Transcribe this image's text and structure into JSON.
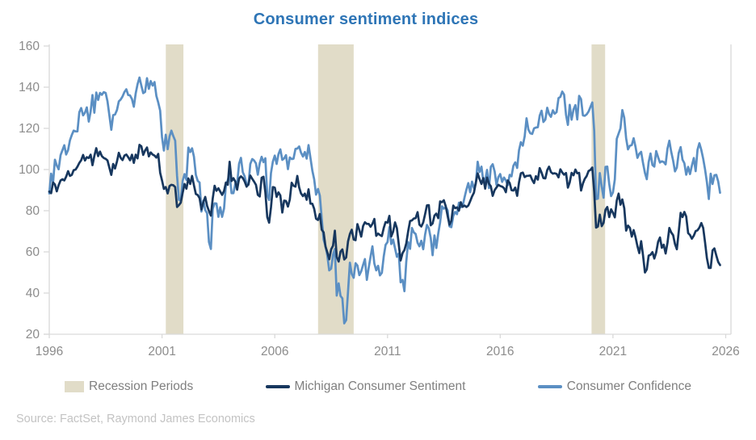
{
  "title": "Consumer sentiment indices",
  "source": "Source: FactSet, Raymond James Economics",
  "legend": {
    "recession_label": "Recession Periods",
    "michigan_label": "Michigan Consumer Sentiment",
    "confidence_label": "Consumer Confidence"
  },
  "colors": {
    "title": "#2E75B6",
    "michigan_line": "#17375E",
    "confidence_line": "#5B8FC3",
    "recession_band": "#E1DCC8",
    "axis_line": "#D9D9D9",
    "tick_text": "#8C8C8C",
    "legend_text": "#7F7F7F",
    "source_text": "#C3C3C3"
  },
  "chart_data": {
    "type": "line",
    "title": "Consumer sentiment indices",
    "x_unit": "monthly",
    "x_start_year": 1996,
    "xlim": [
      1996,
      2026
    ],
    "ylim": [
      20,
      160
    ],
    "x_ticks": [
      1996,
      2001,
      2006,
      2011,
      2016,
      2021,
      2026
    ],
    "y_ticks": [
      20,
      40,
      60,
      80,
      100,
      120,
      140,
      160
    ],
    "grid": false,
    "legend_position": "bottom",
    "recession_periods": [
      {
        "start": 2001.17,
        "end": 2001.95
      },
      {
        "start": 2007.92,
        "end": 2009.5
      },
      {
        "start": 2020.05,
        "end": 2020.65
      }
    ],
    "series": [
      {
        "name": "Michigan Consumer Sentiment",
        "color": "#17375E",
        "values": [
          89.3,
          88.5,
          93.7,
          92.7,
          89.4,
          92.4,
          94.7,
          95.3,
          94.7,
          96.5,
          99.2,
          96.9,
          97.4,
          99.7,
          100.0,
          101.4,
          103.2,
          104.5,
          107.1,
          104.4,
          106.0,
          105.6,
          107.2,
          102.1,
          106.6,
          110.4,
          106.5,
          108.7,
          106.5,
          105.6,
          105.2,
          104.4,
          100.9,
          97.4,
          102.7,
          100.5,
          103.9,
          108.1,
          105.7,
          104.6,
          106.8,
          107.3,
          106.0,
          104.5,
          107.2,
          103.2,
          107.2,
          105.4,
          112.0,
          111.3,
          107.1,
          109.2,
          110.7,
          106.4,
          108.3,
          107.3,
          106.8,
          105.8,
          107.6,
          98.4,
          94.7,
          90.6,
          91.5,
          88.4,
          92.0,
          92.6,
          92.4,
          91.5,
          81.8,
          82.7,
          83.9,
          88.8,
          93.0,
          90.7,
          95.7,
          93.0,
          96.9,
          92.4,
          88.1,
          87.6,
          86.1,
          80.6,
          84.2,
          86.7,
          82.4,
          79.9,
          77.6,
          86.0,
          92.1,
          89.7,
          90.9,
          89.3,
          87.7,
          89.6,
          93.7,
          92.6,
          103.8,
          94.4,
          95.8,
          94.2,
          90.2,
          95.6,
          96.7,
          95.9,
          94.2,
          91.7,
          92.8,
          97.1,
          95.5,
          94.1,
          92.6,
          87.7,
          86.9,
          96.0,
          96.5,
          89.1,
          76.9,
          74.2,
          81.6,
          91.5,
          91.2,
          86.7,
          88.9,
          87.4,
          79.1,
          84.9,
          84.7,
          82.0,
          85.4,
          93.6,
          92.1,
          91.7,
          96.9,
          91.3,
          88.4,
          87.1,
          88.3,
          85.3,
          90.4,
          83.4,
          83.4,
          80.9,
          76.1,
          75.5,
          78.4,
          70.8,
          69.5,
          62.6,
          59.8,
          56.4,
          61.2,
          63.0,
          70.3,
          57.6,
          55.3,
          60.1,
          61.2,
          56.3,
          57.3,
          65.1,
          68.7,
          70.8,
          66.0,
          65.7,
          73.5,
          70.6,
          67.4,
          72.5,
          74.4,
          73.6,
          73.6,
          72.2,
          73.6,
          76.0,
          67.8,
          68.9,
          68.2,
          67.7,
          71.6,
          74.5,
          74.2,
          77.5,
          67.5,
          69.8,
          74.3,
          71.5,
          63.7,
          55.8,
          59.4,
          60.9,
          64.1,
          69.9,
          75.0,
          75.3,
          76.2,
          76.4,
          79.3,
          73.2,
          72.3,
          74.3,
          78.3,
          82.6,
          82.7,
          72.9,
          73.8,
          77.6,
          78.6,
          76.4,
          84.5,
          84.1,
          85.1,
          82.1,
          77.5,
          73.2,
          75.1,
          82.5,
          81.2,
          81.6,
          80.0,
          84.1,
          81.9,
          82.5,
          81.8,
          82.5,
          84.6,
          86.9,
          88.8,
          93.6,
          98.1,
          95.4,
          93.0,
          95.9,
          90.7,
          96.1,
          93.1,
          91.9,
          87.2,
          90.0,
          91.3,
          92.6,
          92.0,
          91.7,
          91.0,
          89.0,
          94.7,
          93.5,
          90.0,
          89.8,
          91.2,
          87.2,
          93.8,
          98.2,
          98.5,
          96.3,
          96.9,
          97.0,
          97.1,
          95.0,
          93.4,
          96.8,
          95.1,
          100.7,
          98.5,
          95.9,
          95.7,
          99.7,
          101.4,
          98.8,
          98.0,
          98.2,
          97.9,
          96.2,
          100.1,
          98.6,
          97.5,
          98.3,
          91.2,
          93.8,
          98.4,
          97.2,
          100.0,
          98.2,
          98.4,
          89.8,
          93.2,
          95.5,
          96.8,
          99.3,
          99.8,
          101.0,
          89.1,
          71.8,
          72.3,
          78.1,
          72.5,
          74.1,
          80.4,
          81.8,
          76.9,
          80.7,
          79.0,
          76.8,
          84.9,
          88.3,
          82.9,
          85.5,
          81.2,
          70.3,
          72.8,
          71.7,
          67.4,
          70.6,
          67.2,
          62.8,
          59.4,
          65.2,
          58.4,
          50.0,
          51.5,
          58.2,
          58.6,
          59.9,
          56.8,
          59.7,
          64.9,
          67.0,
          62.0,
          63.5,
          59.2,
          64.4,
          71.6,
          69.5,
          68.1,
          63.8,
          61.3,
          69.7,
          79.0,
          76.9,
          79.4,
          77.2,
          69.1,
          68.2,
          66.4,
          67.9,
          70.1,
          70.5,
          71.8,
          74.0,
          71.7,
          64.7,
          57.0,
          52.2,
          52.2,
          60.7,
          61.7,
          58.2,
          55.1,
          53.6
        ]
      },
      {
        "name": "Consumer Confidence",
        "color": "#5B8FC3",
        "values": [
          88.4,
          98.0,
          93.7,
          104.8,
          102.0,
          100.1,
          107.0,
          109.4,
          111.8,
          107.3,
          109.5,
          114.2,
          116.8,
          118.9,
          118.5,
          118.5,
          127.9,
          129.9,
          126.3,
          127.6,
          130.2,
          123.3,
          128.1,
          136.2,
          127.6,
          137.4,
          133.8,
          137.2,
          136.3,
          137.6,
          137.2,
          133.1,
          126.4,
          119.3,
          126.4,
          126.7,
          128.9,
          133.1,
          134.0,
          135.5,
          137.7,
          139.0,
          136.2,
          136.0,
          134.2,
          130.5,
          137.0,
          141.4,
          144.7,
          140.8,
          137.1,
          137.7,
          144.4,
          139.2,
          143.0,
          140.8,
          142.5,
          135.8,
          132.6,
          128.6,
          115.7,
          109.2,
          116.9,
          109.9,
          116.1,
          118.9,
          116.3,
          114.0,
          97.0,
          85.3,
          84.9,
          94.6,
          97.8,
          95.0,
          110.7,
          108.5,
          110.3,
          106.3,
          97.4,
          94.5,
          93.7,
          79.6,
          84.9,
          80.3,
          78.8,
          64.8,
          61.4,
          81.0,
          83.6,
          83.5,
          77.0,
          81.7,
          77.0,
          81.1,
          92.5,
          94.8,
          97.7,
          88.5,
          88.5,
          93.0,
          93.1,
          102.8,
          105.7,
          98.7,
          96.7,
          92.9,
          92.6,
          102.7,
          105.1,
          104.4,
          103.0,
          97.5,
          103.1,
          106.2,
          103.6,
          105.5,
          87.5,
          85.2,
          98.3,
          103.8,
          106.8,
          102.7,
          107.5,
          109.8,
          104.7,
          105.4,
          107.0,
          100.2,
          105.9,
          105.1,
          105.3,
          110.0,
          110.2,
          111.2,
          108.2,
          106.3,
          108.5,
          105.3,
          111.9,
          105.6,
          99.5,
          95.2,
          87.8,
          90.6,
          87.3,
          76.4,
          65.9,
          62.8,
          58.1,
          51.0,
          51.9,
          58.5,
          61.4,
          38.8,
          44.7,
          38.6,
          37.4,
          25.3,
          26.9,
          40.8,
          54.8,
          49.3,
          47.4,
          54.5,
          53.4,
          48.7,
          50.6,
          53.6,
          56.5,
          46.4,
          52.3,
          57.7,
          62.7,
          54.3,
          51.0,
          53.2,
          48.6,
          49.9,
          57.8,
          63.4,
          64.8,
          72.0,
          63.8,
          66.0,
          61.7,
          57.6,
          59.2,
          45.2,
          46.4,
          40.9,
          55.2,
          64.8,
          61.5,
          71.6,
          69.5,
          68.7,
          64.4,
          62.7,
          65.4,
          61.3,
          68.4,
          73.1,
          71.5,
          66.7,
          58.4,
          68.0,
          61.9,
          69.0,
          74.3,
          82.1,
          81.0,
          81.8,
          80.2,
          72.4,
          72.0,
          77.5,
          79.4,
          78.3,
          83.9,
          81.7,
          82.2,
          86.4,
          90.3,
          93.4,
          89.0,
          94.1,
          91.0,
          93.1,
          103.8,
          98.8,
          101.4,
          94.3,
          94.6,
          99.8,
          91.0,
          101.3,
          102.6,
          99.1,
          92.6,
          96.3,
          97.8,
          94.0,
          96.1,
          94.7,
          92.4,
          97.4,
          96.7,
          101.8,
          103.5,
          100.8,
          109.4,
          113.3,
          111.6,
          116.1,
          124.9,
          119.4,
          117.6,
          117.3,
          120.0,
          120.4,
          120.6,
          126.2,
          128.6,
          123.1,
          124.3,
          130.0,
          127.0,
          125.6,
          128.8,
          127.1,
          127.9,
          134.7,
          135.3,
          137.9,
          136.4,
          126.6,
          121.7,
          131.4,
          124.2,
          129.2,
          131.3,
          124.3,
          135.8,
          134.2,
          126.3,
          126.1,
          126.8,
          128.2,
          130.4,
          132.6,
          118.8,
          85.7,
          85.9,
          98.3,
          91.7,
          86.3,
          101.3,
          101.4,
          92.9,
          87.1,
          88.9,
          95.2,
          114.9,
          117.5,
          120.0,
          128.9,
          125.1,
          115.2,
          109.8,
          111.6,
          111.9,
          115.2,
          111.1,
          105.7,
          107.6,
          108.6,
          103.2,
          98.4,
          95.3,
          103.6,
          107.8,
          102.2,
          101.4,
          109.0,
          106.0,
          103.4,
          104.0,
          103.7,
          102.5,
          110.1,
          114.0,
          108.7,
          104.3,
          99.1,
          101.0,
          108.0,
          110.9,
          104.8,
          103.1,
          97.5,
          101.3,
          97.8,
          101.9,
          105.6,
          99.2,
          109.6,
          112.8,
          109.5,
          105.3,
          100.1,
          93.9,
          85.7,
          98.0,
          93.0,
          97.2,
          97.4,
          94.2,
          88.7
        ]
      }
    ]
  }
}
